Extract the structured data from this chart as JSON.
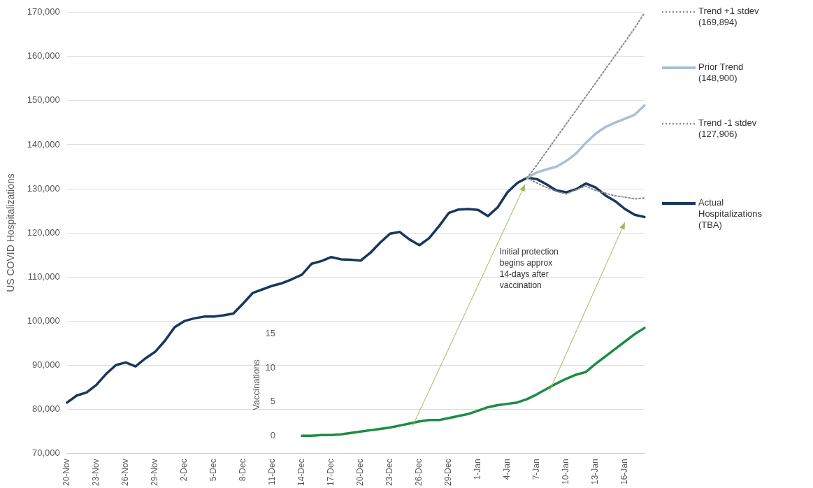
{
  "chart_data": {
    "type": "line",
    "ylabel": "US COVID Hospitalizations",
    "y2label": "Vaccinations",
    "categories": [
      "20-Nov",
      null,
      null,
      "23-Nov",
      null,
      null,
      "26-Nov",
      null,
      null,
      "29-Nov",
      null,
      null,
      "2-Dec",
      null,
      null,
      "5-Dec",
      null,
      null,
      "8-Dec",
      null,
      null,
      "11-Dec",
      null,
      null,
      "14-Dec",
      null,
      null,
      "17-Dec",
      null,
      null,
      "20-Dec",
      null,
      null,
      "23-Dec",
      null,
      null,
      "26-Dec",
      null,
      null,
      "29-Dec",
      null,
      null,
      "1-Jan",
      null,
      null,
      "4-Jan",
      null,
      null,
      "7-Jan",
      null,
      null,
      "10-Jan",
      null,
      null,
      "13-Jan",
      null,
      null,
      "16-Jan",
      null,
      null
    ],
    "series": [
      {
        "name": "Trend +1 stdev (169,894)",
        "color": "#8c8c8c",
        "line_style": "dotted",
        "values": [
          null,
          null,
          null,
          null,
          null,
          null,
          null,
          null,
          null,
          null,
          null,
          null,
          null,
          null,
          null,
          null,
          null,
          null,
          null,
          null,
          null,
          null,
          null,
          null,
          null,
          null,
          null,
          null,
          null,
          null,
          null,
          null,
          null,
          null,
          null,
          null,
          null,
          null,
          null,
          null,
          null,
          null,
          null,
          null,
          null,
          null,
          null,
          132500,
          135400,
          138500,
          141600,
          144700,
          147800,
          150900,
          154000,
          157100,
          160200,
          163300,
          166500,
          169900
        ]
      },
      {
        "name": "Prior Trend (148,900)",
        "color": "#a9bfd6",
        "line_style": "solid",
        "values": [
          null,
          null,
          null,
          null,
          null,
          null,
          null,
          null,
          null,
          null,
          null,
          null,
          null,
          null,
          null,
          null,
          null,
          null,
          null,
          null,
          null,
          null,
          null,
          null,
          null,
          null,
          null,
          null,
          null,
          null,
          null,
          null,
          null,
          null,
          null,
          null,
          null,
          null,
          null,
          null,
          null,
          null,
          null,
          null,
          null,
          null,
          null,
          132500,
          133700,
          134400,
          135000,
          136300,
          138000,
          140400,
          142500,
          144000,
          145000,
          145900,
          146800,
          148900
        ]
      },
      {
        "name": "Trend -1 stdev (127,906)",
        "color": "#8c8c8c",
        "line_style": "dotted",
        "values": [
          null,
          null,
          null,
          null,
          null,
          null,
          null,
          null,
          null,
          null,
          null,
          null,
          null,
          null,
          null,
          null,
          null,
          null,
          null,
          null,
          null,
          null,
          null,
          null,
          null,
          null,
          null,
          null,
          null,
          null,
          null,
          null,
          null,
          null,
          null,
          null,
          null,
          null,
          null,
          null,
          null,
          null,
          null,
          null,
          null,
          null,
          null,
          132500,
          131300,
          130300,
          129400,
          128800,
          129800,
          130600,
          129600,
          129000,
          128400,
          128100,
          127700,
          127900
        ]
      },
      {
        "name": "Actual Hospitalizations (TBA)",
        "color": "#17375e",
        "line_style": "solid",
        "values": [
          81500,
          83100,
          83800,
          85500,
          88000,
          90000,
          90600,
          89700,
          91500,
          93000,
          95500,
          98600,
          100000,
          100600,
          101000,
          101000,
          101300,
          101700,
          104000,
          106400,
          107200,
          108000,
          108600,
          109500,
          110500,
          113000,
          113600,
          114500,
          114000,
          113900,
          113700,
          115500,
          117800,
          119800,
          120200,
          118500,
          117200,
          118800,
          121500,
          124500,
          125300,
          125400,
          125200,
          123800,
          125800,
          129200,
          131300,
          132500,
          132200,
          131000,
          129600,
          129200,
          129900,
          131200,
          130300,
          128500,
          127200,
          125400,
          124100,
          123600
        ]
      },
      {
        "color": "#1e8c45",
        "axis": "y2",
        "line_style": "solid",
        "values": [
          null,
          null,
          null,
          null,
          null,
          null,
          null,
          null,
          null,
          null,
          null,
          null,
          null,
          null,
          null,
          null,
          null,
          null,
          null,
          null,
          null,
          null,
          null,
          null,
          0,
          0,
          0.1,
          0.1,
          0.2,
          0.4,
          0.6,
          0.8,
          1.0,
          1.2,
          1.5,
          1.8,
          2.1,
          2.3,
          2.3,
          2.6,
          2.9,
          3.2,
          3.7,
          4.2,
          4.5,
          4.7,
          4.9,
          5.4,
          6.1,
          6.9,
          7.7,
          8.4,
          9.0,
          9.4,
          10.6,
          11.7,
          12.8,
          13.9,
          15.0,
          15.9
        ]
      }
    ],
    "ylim": [
      70000,
      170000
    ],
    "yticks": [
      {
        "value": 70000,
        "label": "70,000"
      },
      {
        "value": 80000,
        "label": "80,000"
      },
      {
        "value": 90000,
        "label": "90,000"
      },
      {
        "value": 100000,
        "label": "100,000"
      },
      {
        "value": 110000,
        "label": "110,000"
      },
      {
        "value": 120000,
        "label": "120,000"
      },
      {
        "value": 130000,
        "label": "130,000"
      },
      {
        "value": 140000,
        "label": "140,000"
      },
      {
        "value": 150000,
        "label": "150,000"
      },
      {
        "value": 160000,
        "label": "160,000"
      },
      {
        "value": 170000,
        "label": "170,000"
      }
    ],
    "y2lim": [
      -2.6,
      62.5
    ],
    "y2ticks": [
      0,
      5,
      10,
      15
    ],
    "annotations": [
      "Initial protection begins approx 14-days after vaccination"
    ],
    "grid": "y",
    "legend": "right",
    "marker": "none"
  }
}
